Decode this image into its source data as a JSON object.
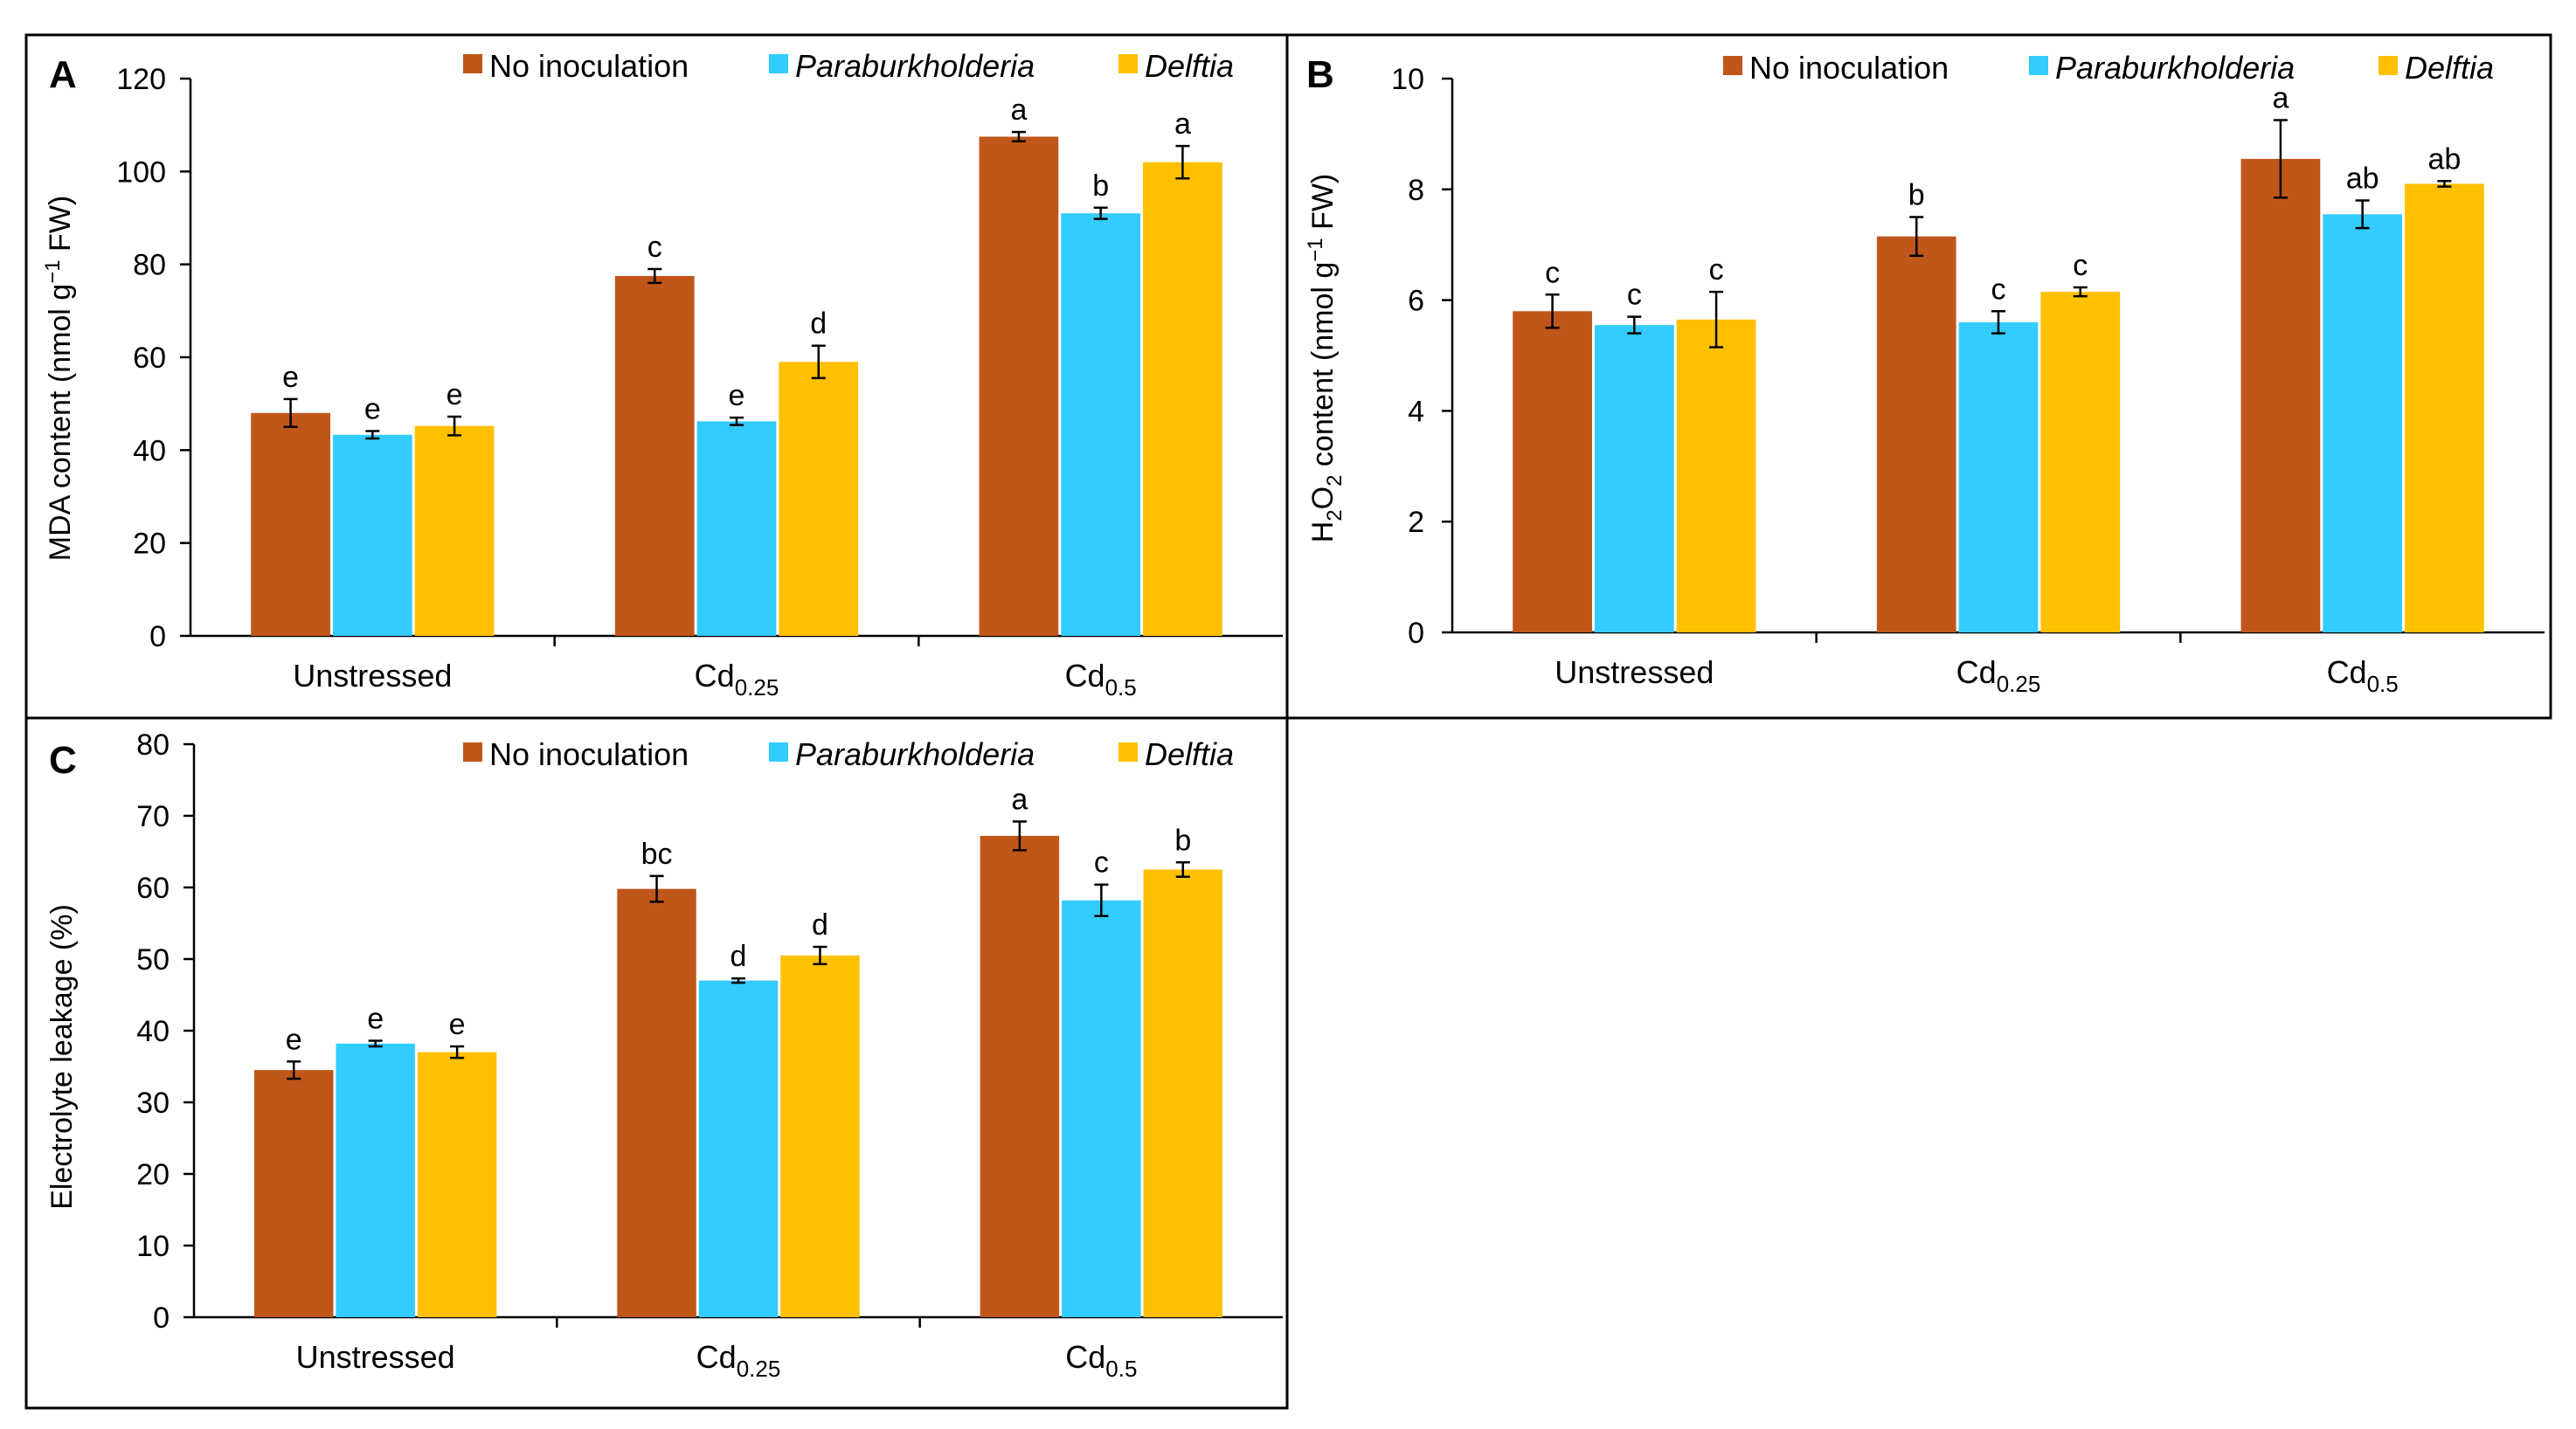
{
  "legend": {
    "entries": [
      {
        "name": "No inoculation",
        "italic": false
      },
      {
        "name": "Paraburkholderia",
        "italic": true
      },
      {
        "name": "Delftia",
        "italic": true
      }
    ]
  },
  "colors": {
    "no_inoculation": "#C0561A",
    "paraburkholderia": "#33CCFF",
    "delftia": "#FFC000",
    "axis": "#000000"
  },
  "chart_data": [
    {
      "panel": "A",
      "type": "bar",
      "ylabel": "MDA content (nmol g⁻¹ FW)",
      "ylabel_parts": [
        "MDA content (nmol g",
        "−1",
        " FW)"
      ],
      "ylim": [
        0,
        120
      ],
      "yticks": [
        "0",
        "20",
        "40",
        "60",
        "80",
        "100",
        "120"
      ],
      "categories": [
        {
          "base": "Unstressed",
          "sub": ""
        },
        {
          "base": "Cd",
          "sub": "0.25"
        },
        {
          "base": "Cd",
          "sub": "0.5"
        }
      ],
      "series": [
        {
          "name": "No inoculation",
          "values": [
            48,
            77.5,
            107.5
          ],
          "errors": [
            3,
            1.5,
            1
          ],
          "letters": [
            "e",
            "c",
            "a"
          ]
        },
        {
          "name": "Paraburkholderia",
          "values": [
            43.3,
            46.2,
            91
          ],
          "errors": [
            0.8,
            0.8,
            1.2
          ],
          "letters": [
            "e",
            "e",
            "b"
          ]
        },
        {
          "name": "Delftia",
          "values": [
            45.2,
            59,
            102
          ],
          "errors": [
            2,
            3.5,
            3.5
          ],
          "letters": [
            "e",
            "d",
            "a"
          ]
        }
      ]
    },
    {
      "panel": "B",
      "type": "bar",
      "ylabel": "H₂O₂ content (nmol g⁻¹ FW)",
      "ylabel_parts": [
        "H",
        "2",
        "O",
        "2",
        " content (nmol g",
        "−1",
        " FW)"
      ],
      "ylim": [
        0,
        10
      ],
      "yticks": [
        "0",
        "2",
        "4",
        "6",
        "8",
        "10"
      ],
      "categories": [
        {
          "base": "Unstressed",
          "sub": ""
        },
        {
          "base": "Cd",
          "sub": "0.25"
        },
        {
          "base": "Cd",
          "sub": "0.5"
        }
      ],
      "series": [
        {
          "name": "No inoculation",
          "values": [
            5.8,
            7.15,
            8.55
          ],
          "errors": [
            0.3,
            0.35,
            0.7
          ],
          "letters": [
            "c",
            "b",
            "a"
          ]
        },
        {
          "name": "Paraburkholderia",
          "values": [
            5.55,
            5.6,
            7.55
          ],
          "errors": [
            0.15,
            0.2,
            0.25
          ],
          "letters": [
            "c",
            "c",
            "ab"
          ]
        },
        {
          "name": "Delftia",
          "values": [
            5.65,
            6.15,
            8.1
          ],
          "errors": [
            0.5,
            0.08,
            0.05
          ],
          "letters": [
            "c",
            "c",
            "ab"
          ]
        }
      ]
    },
    {
      "panel": "C",
      "type": "bar",
      "ylabel": "Electrolyte leakage (%)",
      "ylabel_parts": [
        "Electrolyte leakage (%)"
      ],
      "ylim": [
        0,
        80
      ],
      "yticks": [
        "0",
        "10",
        "20",
        "30",
        "40",
        "50",
        "60",
        "70",
        "80"
      ],
      "categories": [
        {
          "base": "Unstressed",
          "sub": ""
        },
        {
          "base": "Cd",
          "sub": "0.25"
        },
        {
          "base": "Cd",
          "sub": "0.5"
        }
      ],
      "series": [
        {
          "name": "No inoculation",
          "values": [
            34.5,
            59.8,
            67.2
          ],
          "errors": [
            1.2,
            1.8,
            2
          ],
          "letters": [
            "e",
            "bc",
            "a"
          ]
        },
        {
          "name": "Paraburkholderia",
          "values": [
            38.2,
            47,
            58.2
          ],
          "errors": [
            0.4,
            0.3,
            2.2
          ],
          "letters": [
            "e",
            "d",
            "c"
          ]
        },
        {
          "name": "Delftia",
          "values": [
            37,
            50.5,
            62.5
          ],
          "errors": [
            0.8,
            1.2,
            1
          ],
          "letters": [
            "e",
            "d",
            "b"
          ]
        }
      ]
    }
  ]
}
